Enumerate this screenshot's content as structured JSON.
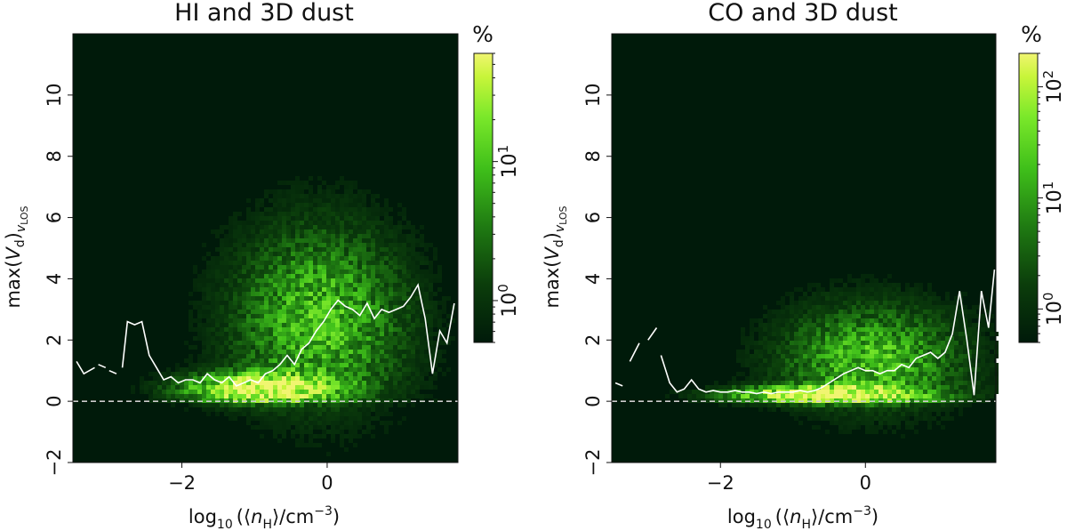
{
  "figure": {
    "panels": [
      {
        "title": "HI and 3D dust",
        "xlabel_base": "log",
        "xlabel_sub": "10",
        "xlabel_rest_a": "(⟨",
        "xlabel_n": "n",
        "xlabel_nsub": "H",
        "xlabel_rest_b": "⟩/cm",
        "xlabel_sup": "−3",
        "xlabel_close": ")",
        "ylabel_a": "max(",
        "ylabel_V": "V",
        "ylabel_d": "d",
        "ylabel_b": ")",
        "ylabel_v": "v",
        "ylabel_los": "LOS",
        "colorbar_label": "%",
        "colorbar_ticks": [
          {
            "base": "10",
            "exp": "0"
          },
          {
            "base": "10",
            "exp": "1"
          }
        ]
      },
      {
        "title": "CO and 3D dust",
        "xlabel_base": "log",
        "xlabel_sub": "10",
        "xlabel_rest_a": "(⟨",
        "xlabel_n": "n",
        "xlabel_nsub": "H",
        "xlabel_rest_b": "⟩/cm",
        "xlabel_sup": "−3",
        "xlabel_close": ")",
        "ylabel_a": "max(",
        "ylabel_V": "V",
        "ylabel_d": "d",
        "ylabel_b": ")",
        "ylabel_v": "v",
        "ylabel_los": "LOS",
        "colorbar_label": "%",
        "colorbar_ticks": [
          {
            "base": "10",
            "exp": "0"
          },
          {
            "base": "10",
            "exp": "1"
          },
          {
            "base": "10",
            "exp": "2"
          }
        ]
      }
    ]
  },
  "chart_data": [
    {
      "type": "heatmap",
      "title": "HI and 3D dust",
      "xlabel": "log10(⟨nH⟩/cm^-3)",
      "ylabel": "max(Vd)vLOS",
      "xlim": [
        -3.5,
        1.8
      ],
      "ylim": [
        -2,
        12
      ],
      "xticks": [
        -2,
        0
      ],
      "yticks": [
        -2,
        0,
        2,
        4,
        6,
        8,
        10
      ],
      "xtick_labels": [
        "−2",
        "0"
      ],
      "ytick_labels": [
        "−2",
        "0",
        "2",
        "4",
        "6",
        "8",
        "10"
      ],
      "colorbar": {
        "label": "%",
        "scale": "log",
        "range": [
          0.5,
          60
        ],
        "ticks": [
          1,
          10
        ],
        "colormap": [
          "#001a0a",
          "#0b3d0b",
          "#1f7a12",
          "#3fbf1a",
          "#7ae82a",
          "#c8f53a",
          "#f0f570"
        ]
      },
      "background_color": "#001a0a",
      "density_blob": {
        "x_center": -0.1,
        "y_center": 2.6,
        "x_spread": 0.85,
        "y_spread": 2.2
      },
      "ridge": {
        "x_center": -1.0,
        "y_center": 0.4,
        "x_spread": 0.7,
        "y_spread": 0.35
      },
      "reference_line": {
        "y": 0,
        "style": "dashed",
        "color": "#cccccc"
      },
      "series": [
        {
          "name": "",
          "color": "#ffffff",
          "segments": [
            {
              "x": [
                -3.45,
                -3.35,
                -3.2
              ],
              "y": [
                1.3,
                0.9,
                1.1
              ]
            },
            {
              "x": [
                -3.15,
                -3.05
              ],
              "y": [
                1.2,
                1.1
              ]
            },
            {
              "x": [
                -3.0,
                -2.9
              ],
              "y": [
                1.0,
                0.9
              ]
            },
            {
              "x": [
                -2.82,
                -2.75,
                -2.65,
                -2.55,
                -2.45,
                -2.35,
                -2.25,
                -2.15,
                -2.05,
                -1.95,
                -1.85,
                -1.75,
                -1.65,
                -1.55,
                -1.45,
                -1.35,
                -1.25,
                -1.15,
                -1.05,
                -0.95,
                -0.85,
                -0.75,
                -0.65,
                -0.55,
                -0.45,
                -0.35,
                -0.25,
                -0.15,
                -0.05,
                0.05,
                0.15,
                0.25,
                0.35,
                0.45,
                0.55,
                0.65,
                0.75,
                0.85,
                0.95,
                1.05,
                1.15,
                1.25,
                1.35,
                1.45,
                1.55,
                1.65,
                1.75
              ],
              "y": [
                1.1,
                2.6,
                2.5,
                2.6,
                1.5,
                1.1,
                0.7,
                0.8,
                0.6,
                0.7,
                0.7,
                0.6,
                0.9,
                0.7,
                0.6,
                0.8,
                0.5,
                0.6,
                0.7,
                0.6,
                0.9,
                1.0,
                1.2,
                1.5,
                1.2,
                1.7,
                1.9,
                2.3,
                2.6,
                3.0,
                3.3,
                3.1,
                3.0,
                2.8,
                3.2,
                2.7,
                3.0,
                2.9,
                3.0,
                3.1,
                3.4,
                3.8,
                2.7,
                0.9,
                2.3,
                1.9,
                3.2
              ]
            }
          ]
        }
      ]
    },
    {
      "type": "heatmap",
      "title": "CO and 3D dust",
      "xlabel": "log10(⟨nH⟩/cm^-3)",
      "ylabel": "max(Vd)vLOS",
      "xlim": [
        -3.5,
        1.8
      ],
      "ylim": [
        -2,
        12
      ],
      "xticks": [
        -2,
        0
      ],
      "yticks": [
        -2,
        0,
        2,
        4,
        6,
        8,
        10
      ],
      "xtick_labels": [
        "−2",
        "0"
      ],
      "ytick_labels": [
        "−2",
        "0",
        "2",
        "4",
        "6",
        "8",
        "10"
      ],
      "colorbar": {
        "label": "%",
        "scale": "log",
        "range": [
          0.5,
          200
        ],
        "ticks": [
          1,
          10,
          100
        ],
        "colormap": [
          "#001a0a",
          "#0b3d0b",
          "#1f7a12",
          "#3fbf1a",
          "#7ae82a",
          "#c8f53a",
          "#f0f570"
        ]
      },
      "background_color": "#001a0a",
      "density_blob": {
        "x_center": 0.1,
        "y_center": 1.3,
        "x_spread": 0.9,
        "y_spread": 1.3
      },
      "ridge": {
        "x_center": -0.6,
        "y_center": 0.2,
        "x_spread": 0.9,
        "y_spread": 0.2
      },
      "reference_line": {
        "y": 0,
        "style": "dashed",
        "color": "#cccccc"
      },
      "series": [
        {
          "name": "",
          "color": "#ffffff",
          "segments": [
            {
              "x": [
                -3.45,
                -3.35
              ],
              "y": [
                0.6,
                0.5
              ]
            },
            {
              "x": [
                -3.25,
                -3.12
              ],
              "y": [
                1.3,
                1.9
              ]
            },
            {
              "x": [
                -3.0,
                -2.88
              ],
              "y": [
                2.0,
                2.4
              ]
            },
            {
              "x": [
                -2.82,
                -2.7,
                -2.6,
                -2.5,
                -2.4,
                -2.3,
                -2.2,
                -2.1,
                -2.0,
                -1.9,
                -1.8,
                -1.7,
                -1.6,
                -1.5,
                -1.4,
                -1.3,
                -1.2,
                -1.1,
                -1.0,
                -0.9,
                -0.8,
                -0.7,
                -0.6,
                -0.5,
                -0.4,
                -0.3,
                -0.2,
                -0.1,
                0.0,
                0.1,
                0.2,
                0.3,
                0.4,
                0.5,
                0.6,
                0.7,
                0.8,
                0.9,
                1.0,
                1.1,
                1.2,
                1.3,
                1.4,
                1.5,
                1.6,
                1.7,
                1.78
              ],
              "y": [
                1.5,
                0.6,
                0.3,
                0.4,
                0.7,
                0.4,
                0.3,
                0.35,
                0.3,
                0.3,
                0.35,
                0.3,
                0.3,
                0.25,
                0.3,
                0.25,
                0.3,
                0.3,
                0.3,
                0.35,
                0.3,
                0.35,
                0.45,
                0.6,
                0.75,
                0.9,
                1.0,
                1.1,
                1.0,
                1.0,
                0.9,
                1.0,
                1.0,
                1.2,
                1.1,
                1.4,
                1.5,
                1.6,
                1.4,
                1.6,
                2.2,
                3.6,
                2.0,
                0.2,
                3.6,
                2.4,
                4.3
              ]
            }
          ]
        }
      ]
    }
  ]
}
